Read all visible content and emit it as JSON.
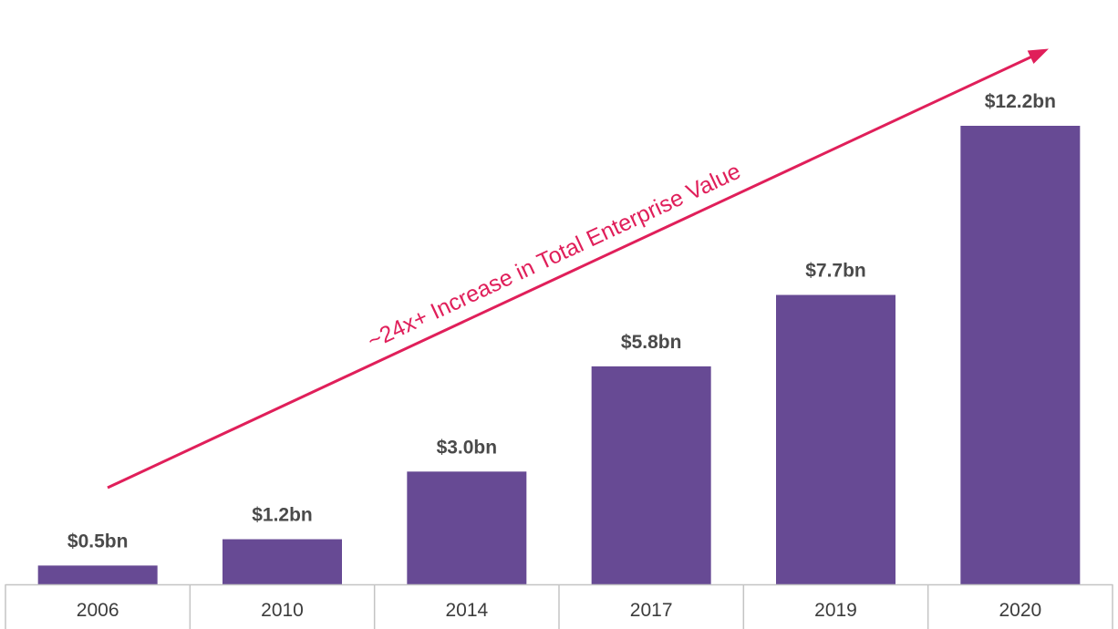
{
  "chart_data": {
    "type": "bar",
    "categories": [
      "2006",
      "2010",
      "2014",
      "2017",
      "2019",
      "2020"
    ],
    "values": [
      0.5,
      1.2,
      3.0,
      5.8,
      7.7,
      12.2
    ],
    "value_labels": [
      "$0.5bn",
      "$1.2bn",
      "$3.0bn",
      "$5.8bn",
      "$7.7bn",
      "$12.2bn"
    ],
    "title": "",
    "xlabel": "",
    "ylabel": "",
    "ylim": [
      0,
      12.2
    ],
    "grid": false,
    "legend": "none",
    "annotation": {
      "text": "~24x+ Increase in Total Enterprise Value",
      "arrow": true
    },
    "colors": {
      "bar": "#674a94",
      "annotation": "#e01f5a",
      "axis": "#c4c4c4",
      "value_label": "#4a4a4a",
      "tick_label": "#3c3c3c"
    }
  }
}
